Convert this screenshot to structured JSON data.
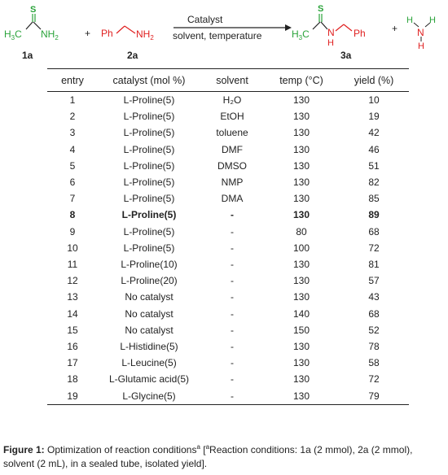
{
  "scheme": {
    "reagent_1": "1a",
    "reagent_2": "2a",
    "product": "3a",
    "arrow_top": "Catalyst",
    "arrow_bottom": "solvent, temperature",
    "plus": "+",
    "atoms": {
      "s": "S",
      "h3c": "H",
      "three": "3",
      "c": "C",
      "nh": "NH",
      "two": "2",
      "ph": "Ph",
      "n": "N",
      "h": "H"
    },
    "colors": {
      "thioamide": "#2aa33a",
      "amine": "#e02020",
      "ink": "#222222"
    }
  },
  "table": {
    "headers": [
      "entry",
      "catalyst (mol %)",
      "solvent",
      "temp (°C)",
      "yield (%)"
    ],
    "rows": [
      {
        "entry": "1",
        "catalyst": "L-Proline(5)",
        "solvent": "H₂O",
        "temp": "130",
        "yield": "10"
      },
      {
        "entry": "2",
        "catalyst": "L-Proline(5)",
        "solvent": "EtOH",
        "temp": "130",
        "yield": "19"
      },
      {
        "entry": "3",
        "catalyst": "L-Proline(5)",
        "solvent": "toluene",
        "temp": "130",
        "yield": "42"
      },
      {
        "entry": "4",
        "catalyst": "L-Proline(5)",
        "solvent": "DMF",
        "temp": "130",
        "yield": "46"
      },
      {
        "entry": "5",
        "catalyst": "L-Proline(5)",
        "solvent": "DMSO",
        "temp": "130",
        "yield": "51"
      },
      {
        "entry": "6",
        "catalyst": "L-Proline(5)",
        "solvent": "NMP",
        "temp": "130",
        "yield": "82"
      },
      {
        "entry": "7",
        "catalyst": "L-Proline(5)",
        "solvent": "DMA",
        "temp": "130",
        "yield": "85"
      },
      {
        "entry": "8",
        "catalyst": "L-Proline(5)",
        "solvent": "-",
        "temp": "130",
        "yield": "89",
        "bold": true
      },
      {
        "entry": "9",
        "catalyst": "L-Proline(5)",
        "solvent": "-",
        "temp": "80",
        "yield": "68"
      },
      {
        "entry": "10",
        "catalyst": "L-Proline(5)",
        "solvent": "-",
        "temp": "100",
        "yield": "72"
      },
      {
        "entry": "11",
        "catalyst": "L-Proline(10)",
        "solvent": "-",
        "temp": "130",
        "yield": "81"
      },
      {
        "entry": "12",
        "catalyst": "L-Proline(20)",
        "solvent": "-",
        "temp": "130",
        "yield": "57"
      },
      {
        "entry": "13",
        "catalyst": "No catalyst",
        "solvent": "-",
        "temp": "130",
        "yield": "43"
      },
      {
        "entry": "14",
        "catalyst": "No catalyst",
        "solvent": "-",
        "temp": "140",
        "yield": "68"
      },
      {
        "entry": "15",
        "catalyst": "No catalyst",
        "solvent": "-",
        "temp": "150",
        "yield": "52"
      },
      {
        "entry": "16",
        "catalyst": "L-Histidine(5)",
        "solvent": "-",
        "temp": "130",
        "yield": "78"
      },
      {
        "entry": "17",
        "catalyst": "L-Leucine(5)",
        "solvent": "-",
        "temp": "130",
        "yield": "58"
      },
      {
        "entry": "18",
        "catalyst": "L-Glutamic acid(5)",
        "solvent": "-",
        "temp": "130",
        "yield": "72"
      },
      {
        "entry": "19",
        "catalyst": "L-Glycine(5)",
        "solvent": "-",
        "temp": "130",
        "yield": "79"
      }
    ]
  },
  "caption": {
    "label": "Figure 1:",
    "text_main": "Optimization of reaction conditions",
    "superscript": "a",
    "text_rest": " [",
    "note_superscript": "a",
    "note": "Reaction conditions: 1a (2 mmol), 2a (2 mmol), solvent (2 mL), in a sealed tube, isolated yield]."
  }
}
